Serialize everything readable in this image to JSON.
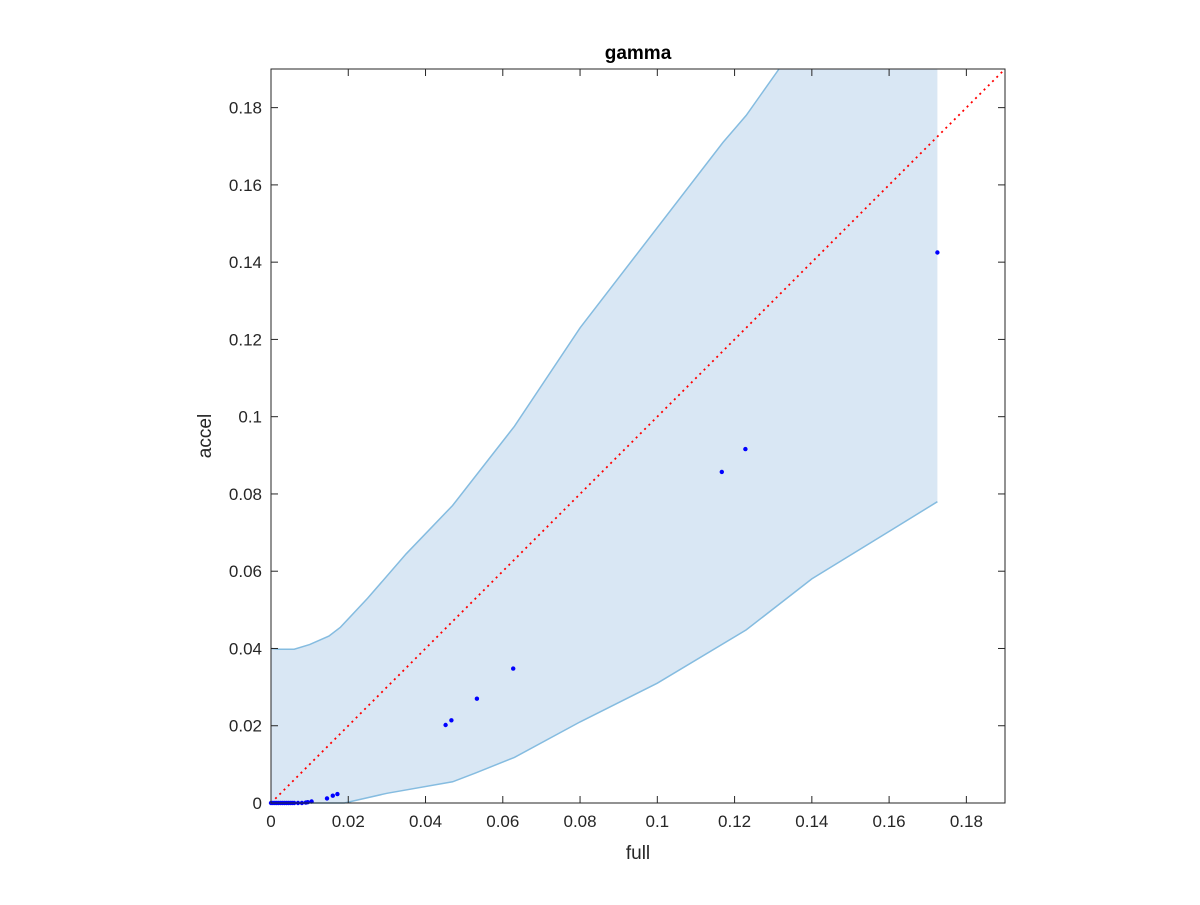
{
  "chart_data": {
    "type": "scatter",
    "title": "gamma",
    "xlabel": "full",
    "ylabel": "accel",
    "xlim": [
      0,
      0.19
    ],
    "ylim": [
      0,
      0.19
    ],
    "xticks": [
      "0",
      "0.02",
      "0.04",
      "0.06",
      "0.08",
      "0.1",
      "0.12",
      "0.14",
      "0.16",
      "0.18"
    ],
    "yticks": [
      "0",
      "0.02",
      "0.04",
      "0.06",
      "0.08",
      "0.1",
      "0.12",
      "0.14",
      "0.16",
      "0.18"
    ],
    "tick_values": [
      0,
      0.02,
      0.04,
      0.06,
      0.08,
      0.1,
      0.12,
      0.14,
      0.16,
      0.18
    ],
    "grid": false,
    "legend": "none",
    "colors": {
      "points": "#0000ff",
      "reference_line": "#ff0000",
      "band_fill": "#d9e7f4",
      "band_edge": "#85bce0",
      "axis": "#262626"
    },
    "points": [
      {
        "x": 0.0,
        "y": 0.0
      },
      {
        "x": 0.0005,
        "y": 0.0
      },
      {
        "x": 0.001,
        "y": 0.0
      },
      {
        "x": 0.0015,
        "y": 0.0
      },
      {
        "x": 0.002,
        "y": 0.0
      },
      {
        "x": 0.0025,
        "y": 0.0
      },
      {
        "x": 0.003,
        "y": 0.0
      },
      {
        "x": 0.0035,
        "y": 0.0
      },
      {
        "x": 0.004,
        "y": 0.0
      },
      {
        "x": 0.0045,
        "y": 0.0
      },
      {
        "x": 0.005,
        "y": 0.0
      },
      {
        "x": 0.0055,
        "y": 0.0
      },
      {
        "x": 0.006,
        "y": 0.0
      },
      {
        "x": 0.007,
        "y": 0.0
      },
      {
        "x": 0.008,
        "y": 0.0
      },
      {
        "x": 0.009,
        "y": 0.0001
      },
      {
        "x": 0.0095,
        "y": 0.0002
      },
      {
        "x": 0.0105,
        "y": 0.0004
      },
      {
        "x": 0.0145,
        "y": 0.0012
      },
      {
        "x": 0.016,
        "y": 0.0019
      },
      {
        "x": 0.0172,
        "y": 0.0023
      },
      {
        "x": 0.0452,
        "y": 0.0202
      },
      {
        "x": 0.0467,
        "y": 0.0214
      },
      {
        "x": 0.0533,
        "y": 0.027
      },
      {
        "x": 0.0627,
        "y": 0.0348
      },
      {
        "x": 0.1167,
        "y": 0.0857
      },
      {
        "x": 0.1228,
        "y": 0.0916
      },
      {
        "x": 0.1725,
        "y": 0.1425
      }
    ],
    "reference_line": {
      "x": [
        0,
        0.19
      ],
      "y": [
        0,
        0.19
      ],
      "style": "dotted"
    },
    "band": {
      "upper": [
        {
          "x": 0.0,
          "y": 0.04
        },
        {
          "x": 0.002,
          "y": 0.0398
        },
        {
          "x": 0.006,
          "y": 0.0398
        },
        {
          "x": 0.01,
          "y": 0.041
        },
        {
          "x": 0.015,
          "y": 0.0432
        },
        {
          "x": 0.018,
          "y": 0.0455
        },
        {
          "x": 0.025,
          "y": 0.053
        },
        {
          "x": 0.035,
          "y": 0.0645
        },
        {
          "x": 0.047,
          "y": 0.077
        },
        {
          "x": 0.063,
          "y": 0.0975
        },
        {
          "x": 0.08,
          "y": 0.123
        },
        {
          "x": 0.117,
          "y": 0.171
        },
        {
          "x": 0.123,
          "y": 0.178
        },
        {
          "x": 0.1315,
          "y": 0.19
        },
        {
          "x": 0.1725,
          "y": 0.19
        }
      ],
      "lower": [
        {
          "x": 0.0,
          "y": 0.0
        },
        {
          "x": 0.01,
          "y": 0.0
        },
        {
          "x": 0.019,
          "y": 0.0
        },
        {
          "x": 0.03,
          "y": 0.0025
        },
        {
          "x": 0.047,
          "y": 0.0055
        },
        {
          "x": 0.053,
          "y": 0.0078
        },
        {
          "x": 0.063,
          "y": 0.0118
        },
        {
          "x": 0.08,
          "y": 0.021
        },
        {
          "x": 0.1,
          "y": 0.031
        },
        {
          "x": 0.123,
          "y": 0.0448
        },
        {
          "x": 0.14,
          "y": 0.058
        },
        {
          "x": 0.1725,
          "y": 0.078
        }
      ]
    }
  }
}
